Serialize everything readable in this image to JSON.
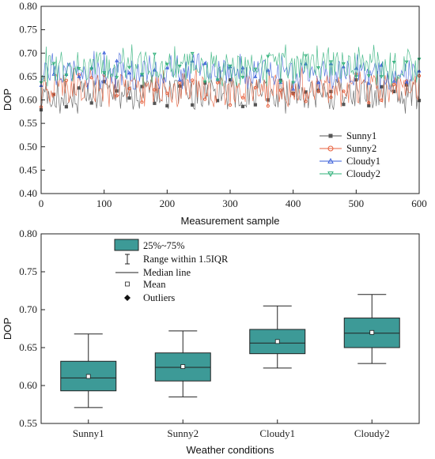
{
  "chart_data": [
    {
      "type": "line",
      "xlabel": "Measurement sample",
      "ylabel": "DOP",
      "xlim": [
        0,
        600
      ],
      "ylim": [
        0.4,
        0.8
      ],
      "xticks": [
        "0",
        "100",
        "200",
        "300",
        "400",
        "500",
        "600"
      ],
      "yticks": [
        "0.40",
        "0.45",
        "0.50",
        "0.55",
        "0.60",
        "0.65",
        "0.70",
        "0.75",
        "0.80"
      ],
      "legend_position": "lower-right",
      "grid": false,
      "series": [
        {
          "name": "Sunny1",
          "color": "#555555",
          "marker": "square",
          "mean": 0.612,
          "q1": 0.593,
          "q3": 0.632,
          "min": 0.571,
          "max": 0.668
        },
        {
          "name": "Sunny2",
          "color": "#e8603c",
          "marker": "circle",
          "mean": 0.625,
          "q1": 0.606,
          "q3": 0.643,
          "min": 0.585,
          "max": 0.672
        },
        {
          "name": "Cloudy1",
          "color": "#3a5fd9",
          "marker": "triangle-up",
          "mean": 0.658,
          "q1": 0.642,
          "q3": 0.674,
          "min": 0.623,
          "max": 0.705
        },
        {
          "name": "Cloudy2",
          "color": "#2fb07a",
          "marker": "triangle-down",
          "mean": 0.67,
          "q1": 0.65,
          "q3": 0.689,
          "min": 0.629,
          "max": 0.72
        }
      ]
    },
    {
      "type": "box",
      "xlabel": "Weather conditions",
      "ylabel": "DOP",
      "ylim": [
        0.55,
        0.8
      ],
      "yticks": [
        "0.55",
        "0.60",
        "0.65",
        "0.70",
        "0.75",
        "0.80"
      ],
      "categories": [
        "Sunny1",
        "Sunny2",
        "Cloudy1",
        "Cloudy2"
      ],
      "box_color": "#3d9a97",
      "legend_position": "top-left",
      "legend": [
        "25%~75%",
        "Range within 1.5IQR",
        "Median line",
        "Mean",
        "Outliers"
      ],
      "boxes": [
        {
          "q1": 0.593,
          "median": 0.61,
          "q3": 0.632,
          "whisker_low": 0.571,
          "whisker_high": 0.668,
          "mean": 0.612
        },
        {
          "q1": 0.606,
          "median": 0.624,
          "q3": 0.643,
          "whisker_low": 0.585,
          "whisker_high": 0.672,
          "mean": 0.625
        },
        {
          "q1": 0.642,
          "median": 0.656,
          "q3": 0.674,
          "whisker_low": 0.623,
          "whisker_high": 0.705,
          "mean": 0.658
        },
        {
          "q1": 0.65,
          "median": 0.669,
          "q3": 0.689,
          "whisker_low": 0.629,
          "whisker_high": 0.72,
          "mean": 0.67
        }
      ]
    }
  ]
}
